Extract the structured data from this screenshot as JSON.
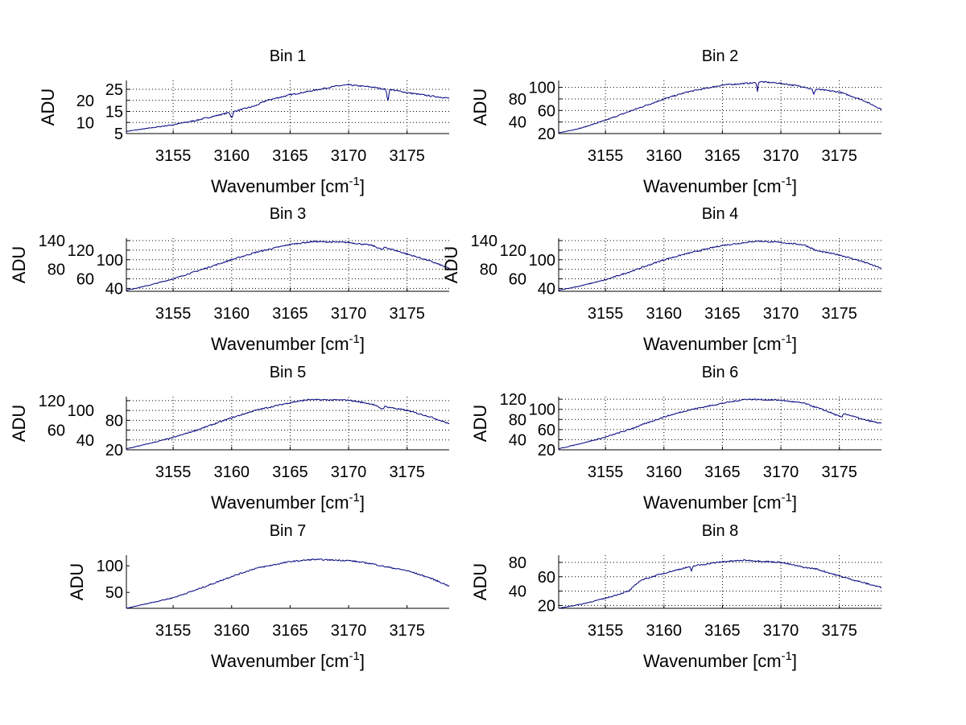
{
  "chart_data": [
    {
      "type": "line",
      "title": "Bin 1",
      "xlabel": "Wavenumber [cm",
      "xlabel_sup": "-1",
      "xlabel_close": "]",
      "ylabel": "ADU",
      "xlim": [
        3151,
        3178.6
      ],
      "ylim": [
        5,
        29
      ],
      "xticks": [
        3155,
        3160,
        3165,
        3170,
        3175
      ],
      "yticks": [
        5,
        10,
        15,
        20,
        25
      ],
      "grid": true,
      "x": [
        3151,
        3153,
        3155,
        3157,
        3159.8,
        3160,
        3160.2,
        3162,
        3163,
        3165,
        3166.5,
        3168,
        3169,
        3170,
        3171,
        3172,
        3173.2,
        3173.35,
        3173.5,
        3175,
        3177,
        3178.6
      ],
      "y": [
        6,
        7.5,
        9,
        11,
        14.5,
        12,
        15,
        17.5,
        20,
        22.5,
        24,
        25.5,
        26.5,
        27,
        26.5,
        26,
        25,
        19,
        25,
        23.5,
        22,
        21
      ]
    },
    {
      "type": "line",
      "title": "Bin 2",
      "xlabel": "Wavenumber [cm",
      "xlabel_sup": "-1",
      "xlabel_close": "]",
      "ylabel": "ADU",
      "xlim": [
        3151,
        3178.6
      ],
      "ylim": [
        20,
        112
      ],
      "xticks": [
        3155,
        3160,
        3165,
        3170,
        3175
      ],
      "yticks": [
        20,
        40,
        60,
        80,
        100
      ],
      "grid": true,
      "x": [
        3151,
        3153,
        3155,
        3157,
        3160,
        3162,
        3165,
        3167,
        3167.9,
        3168,
        3168.1,
        3170,
        3172,
        3172.7,
        3172.8,
        3173,
        3175,
        3177,
        3178.6
      ],
      "y": [
        21,
        30,
        43,
        58,
        80,
        92,
        104,
        107,
        108,
        92,
        110,
        107,
        101,
        96,
        88,
        97,
        92,
        78,
        62
      ]
    },
    {
      "type": "line",
      "title": "Bin 3",
      "xlabel": "Wavenumber [cm",
      "xlabel_sup": "-1",
      "xlabel_close": "]",
      "ylabel": "ADU",
      "xlim": [
        3151,
        3178.6
      ],
      "ylim": [
        34,
        145
      ],
      "xticks": [
        3155,
        3160,
        3165,
        3170,
        3175
      ],
      "yticks": [
        40,
        60,
        80,
        100,
        120,
        140
      ],
      "grid": true,
      "x": [
        3151,
        3153,
        3155,
        3157,
        3160,
        3162,
        3165,
        3167,
        3170,
        3172,
        3172.9,
        3173.1,
        3175,
        3177,
        3178.6
      ],
      "y": [
        36,
        47,
        60,
        76,
        100,
        115,
        132,
        138,
        136,
        130,
        121,
        126,
        112,
        97,
        82
      ]
    },
    {
      "type": "line",
      "title": "Bin 4",
      "xlabel": "Wavenumber [cm",
      "xlabel_sup": "-1",
      "xlabel_close": "]",
      "ylabel": "ADU",
      "xlim": [
        3151,
        3178.6
      ],
      "ylim": [
        34,
        145
      ],
      "xticks": [
        3155,
        3160,
        3165,
        3170,
        3175
      ],
      "yticks": [
        40,
        60,
        80,
        100,
        120,
        140
      ],
      "grid": true,
      "x": [
        3151,
        3153,
        3155,
        3157,
        3160,
        3162,
        3165,
        3168,
        3170,
        3172,
        3172.8,
        3173,
        3175,
        3177,
        3178.6
      ],
      "y": [
        36,
        46,
        58,
        74,
        100,
        113,
        130,
        139,
        136,
        131,
        122,
        119,
        110,
        96,
        82
      ]
    },
    {
      "type": "line",
      "title": "Bin 5",
      "xlabel": "Wavenumber [cm",
      "xlabel_sup": "-1",
      "xlabel_close": "]",
      "ylabel": "ADU",
      "xlim": [
        3151,
        3178.6
      ],
      "ylim": [
        20,
        128
      ],
      "xticks": [
        3155,
        3160,
        3165,
        3170,
        3175
      ],
      "yticks": [
        20,
        40,
        60,
        80,
        100,
        120
      ],
      "grid": true,
      "x": [
        3151,
        3153,
        3155,
        3157,
        3160,
        3162,
        3165,
        3166.5,
        3170,
        3172,
        3172.9,
        3173.1,
        3175,
        3177,
        3178.6
      ],
      "y": [
        22,
        33,
        45,
        60,
        85,
        100,
        116,
        122,
        121,
        113,
        103,
        108,
        100,
        87,
        73
      ]
    },
    {
      "type": "line",
      "title": "Bin 6",
      "xlabel": "Wavenumber [cm",
      "xlabel_sup": "-1",
      "xlabel_close": "]",
      "ylabel": "ADU",
      "xlim": [
        3151,
        3178.6
      ],
      "ylim": [
        20,
        125
      ],
      "xticks": [
        3155,
        3160,
        3165,
        3170,
        3175
      ],
      "yticks": [
        20,
        40,
        60,
        80,
        100,
        120
      ],
      "grid": true,
      "x": [
        3151,
        3153,
        3155,
        3157,
        3160,
        3162,
        3165,
        3167,
        3170,
        3172,
        3174,
        3175.2,
        3175.4,
        3177,
        3178.6
      ],
      "y": [
        22,
        33,
        45,
        60,
        85,
        98,
        112,
        120,
        118,
        112,
        96,
        84,
        92,
        80,
        72
      ]
    },
    {
      "type": "line",
      "title": "Bin 7",
      "xlabel": "Wavenumber [cm",
      "xlabel_sup": "-1",
      "xlabel_close": "]",
      "ylabel": "ADU",
      "xlim": [
        3151,
        3178.6
      ],
      "ylim": [
        20,
        120
      ],
      "xticks": [
        3155,
        3160,
        3165,
        3170,
        3175
      ],
      "yticks": [
        50,
        100
      ],
      "grid": false,
      "x": [
        3151,
        3153,
        3155,
        3157,
        3160,
        3162,
        3165,
        3167,
        3170,
        3172,
        3173,
        3175,
        3177,
        3178.6
      ],
      "y": [
        20,
        30,
        40,
        55,
        80,
        95,
        108,
        112,
        110,
        104,
        99,
        91,
        77,
        62
      ]
    },
    {
      "type": "line",
      "title": "Bin 8",
      "xlabel": "Wavenumber [cm",
      "xlabel_sup": "-1",
      "xlabel_close": "]",
      "ylabel": "ADU",
      "xlim": [
        3151,
        3178.6
      ],
      "ylim": [
        16,
        90
      ],
      "xticks": [
        3155,
        3160,
        3165,
        3170,
        3175
      ],
      "yticks": [
        20,
        40,
        60,
        80
      ],
      "grid": true,
      "x": [
        3151,
        3153,
        3155,
        3157,
        3158,
        3160,
        3162.2,
        3162.35,
        3162.5,
        3165,
        3167,
        3170,
        3172,
        3173,
        3175,
        3177,
        3178.6
      ],
      "y": [
        16,
        22,
        30,
        40,
        55,
        65,
        74,
        67,
        75,
        81,
        83,
        80,
        73,
        71,
        61,
        52,
        45
      ]
    }
  ],
  "colors": {
    "line": "#00007f",
    "grid": "#000000"
  }
}
